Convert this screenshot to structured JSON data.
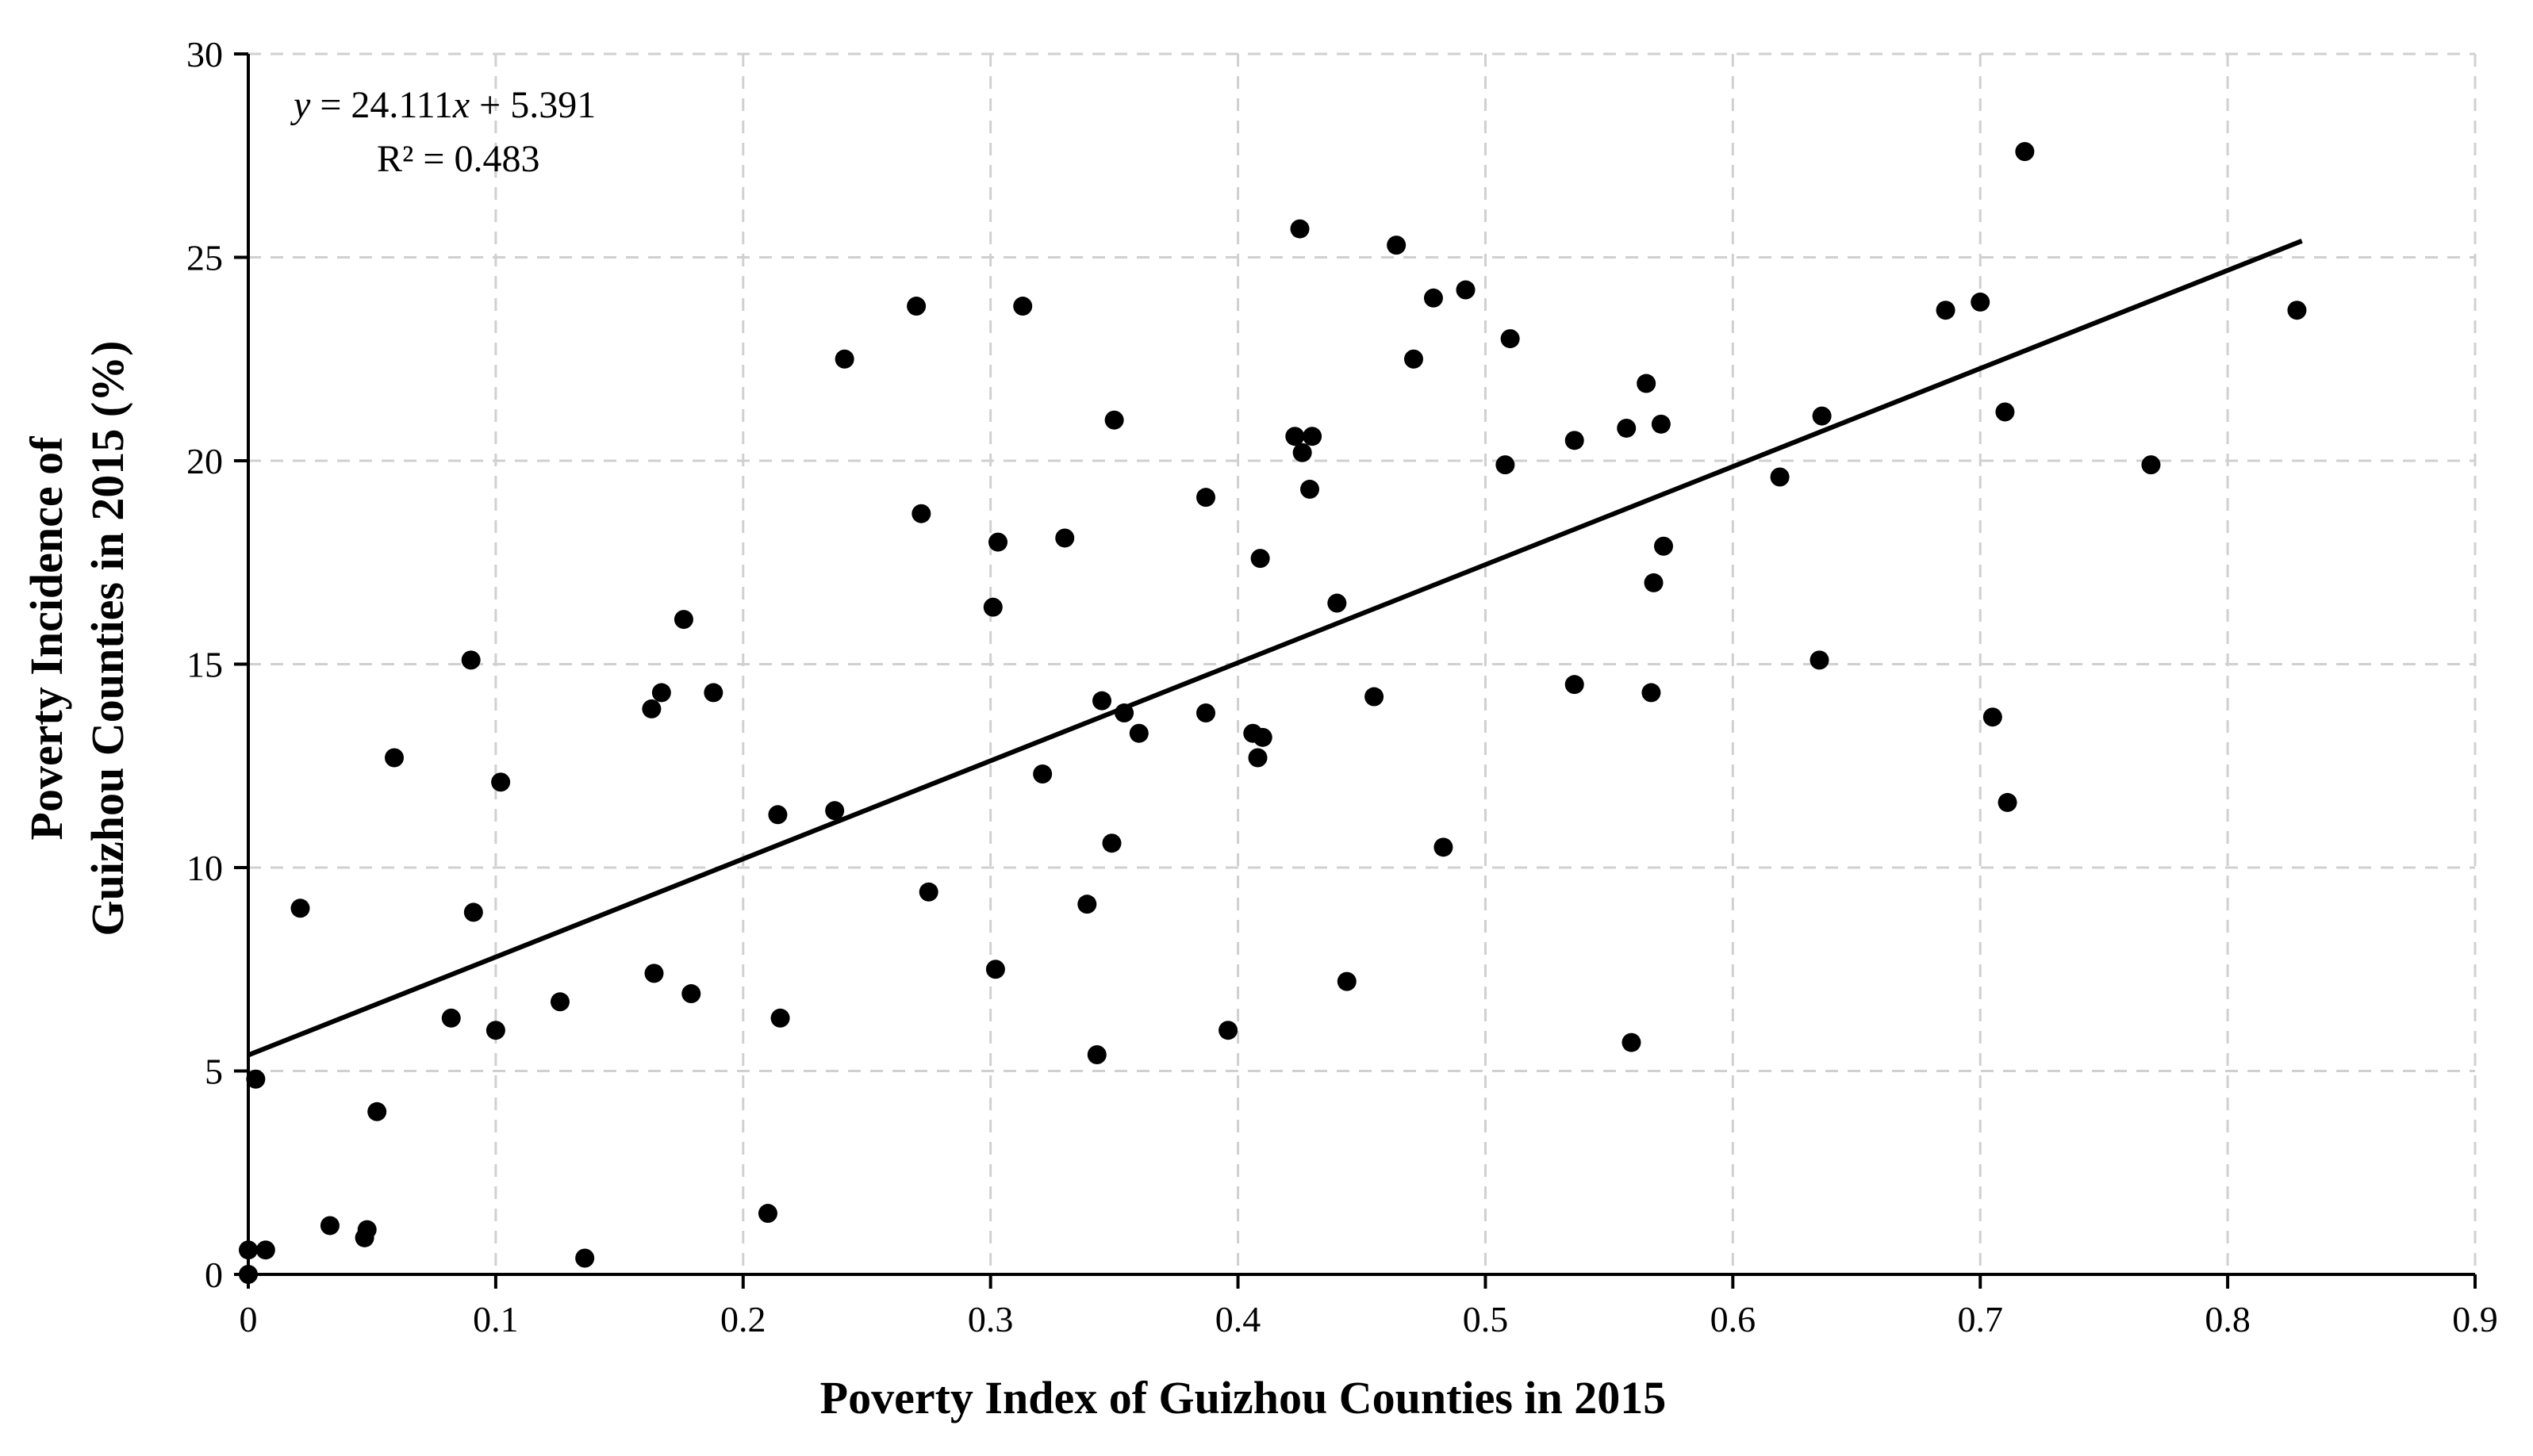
{
  "chart_data": {
    "type": "scatter",
    "title": "",
    "xlabel": "Poverty Index of Guizhou Counties in 2015",
    "ylabel_lines": [
      "Poverty Incidence of",
      "Guizhou Counties in 2015 (%)"
    ],
    "xlim": [
      0,
      0.9
    ],
    "ylim": [
      0,
      30
    ],
    "x_ticks": [
      "0",
      "0.1",
      "0.2",
      "0.3",
      "0.4",
      "0.5",
      "0.6",
      "0.7",
      "0.8",
      "0.9"
    ],
    "y_ticks": [
      "0",
      "5",
      "10",
      "15",
      "20",
      "25",
      "30"
    ],
    "grid": true,
    "legend": "none",
    "trendline": {
      "slope": 24.111,
      "intercept": 5.391,
      "x_range": [
        0,
        0.83
      ],
      "equation_prefix": "y",
      "equation_rest": " = 24.111",
      "equation_var": "x",
      "equation_tail": " + 5.391",
      "r2_label": "R² = 0.483"
    },
    "colors": {
      "points": "#000000",
      "grid": "#d0d0d0",
      "axis": "#000000"
    },
    "points": [
      [
        0.0,
        0.0
      ],
      [
        0.0,
        0.6
      ],
      [
        0.003,
        4.8
      ],
      [
        0.007,
        0.6
      ],
      [
        0.021,
        9.0
      ],
      [
        0.033,
        1.2
      ],
      [
        0.047,
        0.9
      ],
      [
        0.048,
        1.1
      ],
      [
        0.052,
        4.0
      ],
      [
        0.059,
        12.7
      ],
      [
        0.082,
        6.3
      ],
      [
        0.09,
        15.1
      ],
      [
        0.091,
        8.9
      ],
      [
        0.1,
        6.0
      ],
      [
        0.102,
        12.1
      ],
      [
        0.126,
        6.7
      ],
      [
        0.136,
        0.4
      ],
      [
        0.163,
        13.9
      ],
      [
        0.164,
        7.4
      ],
      [
        0.167,
        14.3
      ],
      [
        0.176,
        16.1
      ],
      [
        0.179,
        6.9
      ],
      [
        0.188,
        14.3
      ],
      [
        0.21,
        1.5
      ],
      [
        0.214,
        11.3
      ],
      [
        0.215,
        6.3
      ],
      [
        0.237,
        11.4
      ],
      [
        0.241,
        22.5
      ],
      [
        0.27,
        23.8
      ],
      [
        0.272,
        18.7
      ],
      [
        0.275,
        9.4
      ],
      [
        0.301,
        16.4
      ],
      [
        0.302,
        7.5
      ],
      [
        0.303,
        18.0
      ],
      [
        0.313,
        23.8
      ],
      [
        0.321,
        12.3
      ],
      [
        0.33,
        18.1
      ],
      [
        0.339,
        9.1
      ],
      [
        0.343,
        5.4
      ],
      [
        0.345,
        14.1
      ],
      [
        0.349,
        10.6
      ],
      [
        0.35,
        21.0
      ],
      [
        0.354,
        13.8
      ],
      [
        0.36,
        13.3
      ],
      [
        0.387,
        19.1
      ],
      [
        0.387,
        13.8
      ],
      [
        0.396,
        6.0
      ],
      [
        0.406,
        13.3
      ],
      [
        0.408,
        12.7
      ],
      [
        0.409,
        17.6
      ],
      [
        0.41,
        13.2
      ],
      [
        0.423,
        20.6
      ],
      [
        0.425,
        25.7
      ],
      [
        0.426,
        20.2
      ],
      [
        0.429,
        19.3
      ],
      [
        0.43,
        20.6
      ],
      [
        0.44,
        16.5
      ],
      [
        0.444,
        7.2
      ],
      [
        0.455,
        14.2
      ],
      [
        0.464,
        25.3
      ],
      [
        0.471,
        22.5
      ],
      [
        0.479,
        24.0
      ],
      [
        0.483,
        10.5
      ],
      [
        0.492,
        24.2
      ],
      [
        0.508,
        19.9
      ],
      [
        0.51,
        23.0
      ],
      [
        0.536,
        20.5
      ],
      [
        0.536,
        14.5
      ],
      [
        0.557,
        20.8
      ],
      [
        0.559,
        5.7
      ],
      [
        0.565,
        21.9
      ],
      [
        0.567,
        14.3
      ],
      [
        0.568,
        17.0
      ],
      [
        0.571,
        20.9
      ],
      [
        0.572,
        17.9
      ],
      [
        0.619,
        19.6
      ],
      [
        0.635,
        15.1
      ],
      [
        0.636,
        21.1
      ],
      [
        0.686,
        23.7
      ],
      [
        0.7,
        23.9
      ],
      [
        0.705,
        13.7
      ],
      [
        0.71,
        21.2
      ],
      [
        0.711,
        11.6
      ],
      [
        0.718,
        27.6
      ],
      [
        0.769,
        19.9
      ],
      [
        0.828,
        23.7
      ]
    ]
  }
}
